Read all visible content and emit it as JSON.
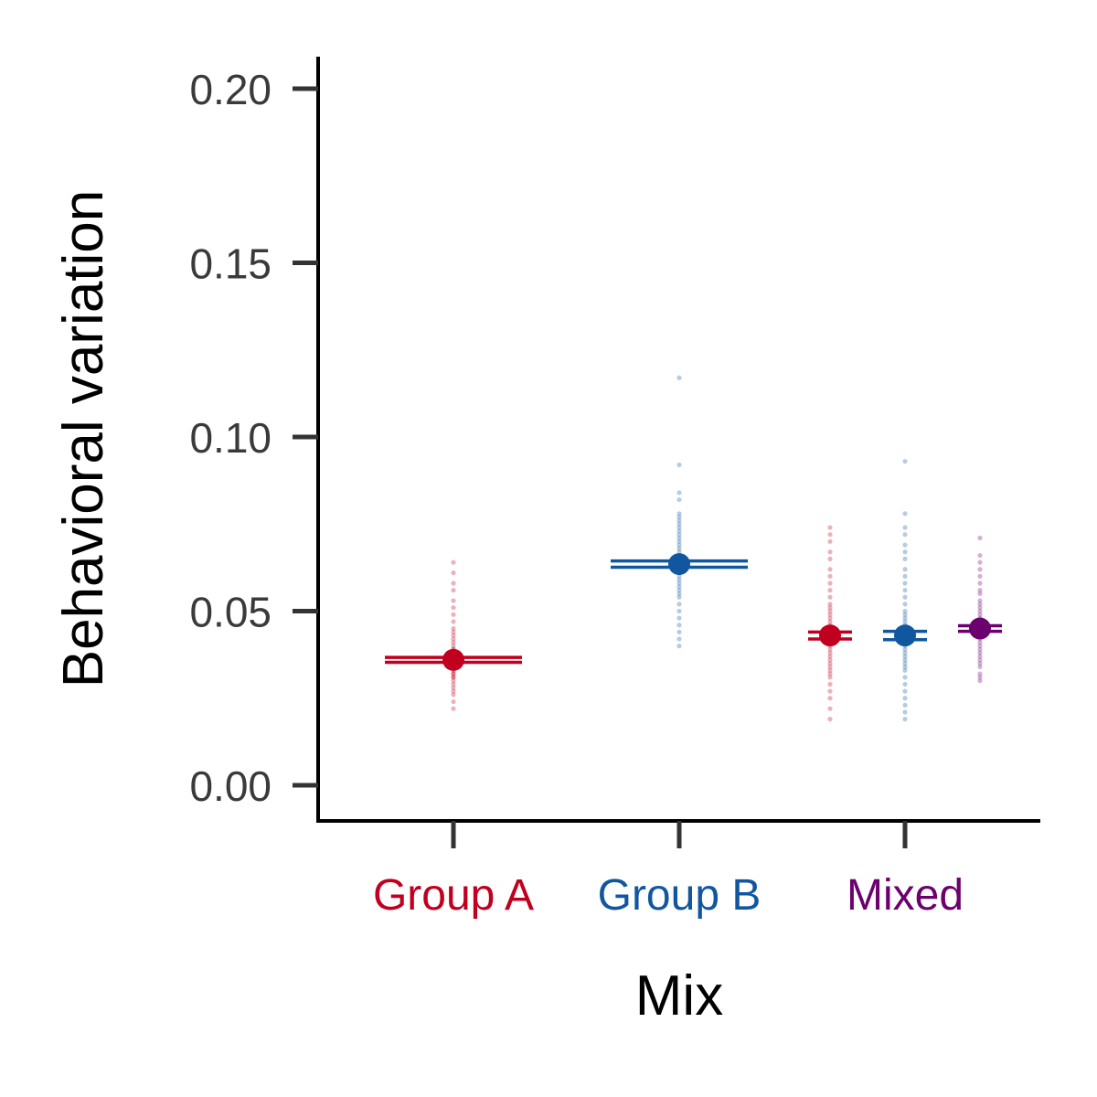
{
  "chart_data": {
    "type": "scatter",
    "title": "",
    "xlabel": "Mix",
    "ylabel": "Behavioral variation",
    "ylim": [
      -0.01,
      0.21
    ],
    "yticks": [
      0.0,
      0.05,
      0.1,
      0.15,
      0.2
    ],
    "ytick_labels": [
      "0.00",
      "0.05",
      "0.10",
      "0.15",
      "0.20"
    ],
    "categories": [
      "Group A",
      "Group B",
      "Mixed"
    ],
    "category_colors": [
      "#c0001e",
      "#1157a0",
      "#6b006e"
    ],
    "grid": false,
    "legend": "none",
    "series": [
      {
        "category": "Group A",
        "color": "#c0001e",
        "mean": 0.036,
        "ci": [
          0.0353,
          0.0367
        ],
        "points": [
          0.022,
          0.024,
          0.026,
          0.027,
          0.028,
          0.029,
          0.03,
          0.031,
          0.031,
          0.032,
          0.032,
          0.033,
          0.033,
          0.034,
          0.034,
          0.035,
          0.035,
          0.035,
          0.036,
          0.036,
          0.036,
          0.037,
          0.037,
          0.038,
          0.038,
          0.039,
          0.039,
          0.04,
          0.041,
          0.042,
          0.043,
          0.044,
          0.045,
          0.047,
          0.049,
          0.051,
          0.053,
          0.056,
          0.058,
          0.061,
          0.064
        ]
      },
      {
        "category": "Group B",
        "color": "#1157a0",
        "mean": 0.0635,
        "ci": [
          0.0626,
          0.0644
        ],
        "points": [
          0.04,
          0.042,
          0.044,
          0.046,
          0.048,
          0.05,
          0.052,
          0.054,
          0.055,
          0.056,
          0.057,
          0.058,
          0.059,
          0.06,
          0.061,
          0.062,
          0.063,
          0.063,
          0.064,
          0.064,
          0.065,
          0.066,
          0.067,
          0.068,
          0.069,
          0.07,
          0.071,
          0.072,
          0.073,
          0.074,
          0.075,
          0.076,
          0.077,
          0.078,
          0.082,
          0.084,
          0.092,
          0.117
        ]
      },
      {
        "category": "Mixed",
        "group": "Group A",
        "color": "#c0001e",
        "mean": 0.043,
        "ci": [
          0.042,
          0.044
        ],
        "points": [
          0.019,
          0.022,
          0.025,
          0.027,
          0.029,
          0.031,
          0.032,
          0.033,
          0.034,
          0.035,
          0.036,
          0.037,
          0.038,
          0.039,
          0.04,
          0.041,
          0.042,
          0.043,
          0.043,
          0.044,
          0.045,
          0.046,
          0.047,
          0.048,
          0.049,
          0.05,
          0.051,
          0.052,
          0.054,
          0.056,
          0.058,
          0.06,
          0.062,
          0.065,
          0.067,
          0.07,
          0.072,
          0.074
        ]
      },
      {
        "category": "Mixed",
        "group": "Group B",
        "color": "#1157a0",
        "mean": 0.043,
        "ci": [
          0.0418,
          0.0442
        ],
        "points": [
          0.019,
          0.021,
          0.023,
          0.025,
          0.027,
          0.029,
          0.031,
          0.033,
          0.034,
          0.035,
          0.036,
          0.037,
          0.038,
          0.039,
          0.04,
          0.041,
          0.042,
          0.043,
          0.044,
          0.045,
          0.046,
          0.047,
          0.048,
          0.049,
          0.05,
          0.052,
          0.054,
          0.056,
          0.058,
          0.06,
          0.062,
          0.065,
          0.067,
          0.069,
          0.072,
          0.074,
          0.078,
          0.093
        ]
      },
      {
        "category": "Mixed",
        "group": "Mixed",
        "color": "#6b006e",
        "mean": 0.045,
        "ci": [
          0.0442,
          0.0458
        ],
        "points": [
          0.03,
          0.031,
          0.032,
          0.034,
          0.035,
          0.036,
          0.037,
          0.038,
          0.039,
          0.04,
          0.041,
          0.042,
          0.043,
          0.044,
          0.045,
          0.045,
          0.046,
          0.047,
          0.048,
          0.049,
          0.05,
          0.051,
          0.052,
          0.053,
          0.055,
          0.056,
          0.058,
          0.06,
          0.062,
          0.064,
          0.066,
          0.071
        ]
      }
    ]
  }
}
